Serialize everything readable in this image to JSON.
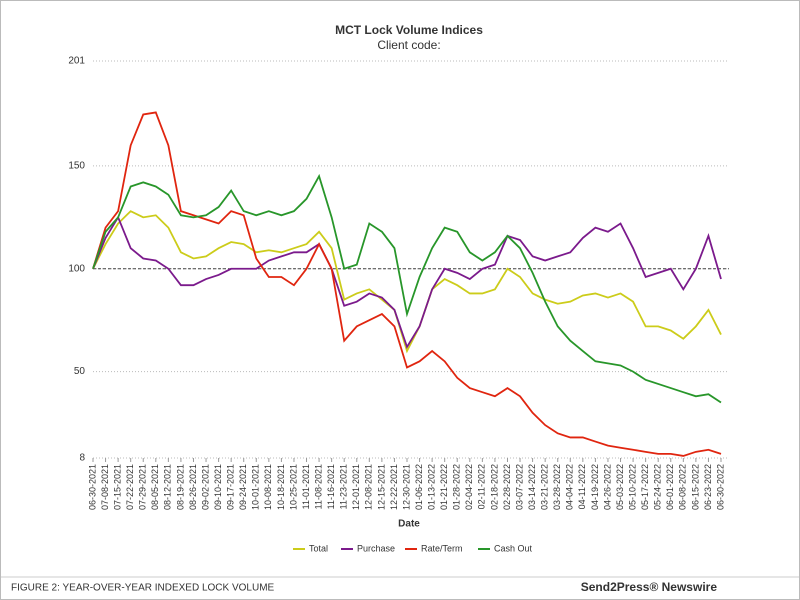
{
  "chart_data": {
    "type": "line",
    "title": "MCT Lock Volume Indices",
    "subtitle": "Client code:",
    "x_label": "Date",
    "categories": [
      "06-30-2021",
      "07-08-2021",
      "07-15-2021",
      "07-22-2021",
      "07-29-2021",
      "08-05-2021",
      "08-12-2021",
      "08-19-2021",
      "08-26-2021",
      "09-02-2021",
      "09-10-2021",
      "09-17-2021",
      "09-24-2021",
      "10-01-2021",
      "10-08-2021",
      "10-18-2021",
      "10-25-2021",
      "11-01-2021",
      "11-08-2021",
      "11-16-2021",
      "11-23-2021",
      "12-01-2021",
      "12-08-2021",
      "12-15-2021",
      "12-22-2021",
      "12-30-2021",
      "01-06-2022",
      "01-13-2022",
      "01-21-2022",
      "01-28-2022",
      "02-04-2022",
      "02-11-2022",
      "02-18-2022",
      "02-28-2022",
      "03-07-2022",
      "03-14-2022",
      "03-21-2022",
      "03-28-2022",
      "04-04-2022",
      "04-11-2022",
      "04-19-2022",
      "04-26-2022",
      "05-03-2022",
      "05-10-2022",
      "05-17-2022",
      "05-24-2022",
      "06-01-2022",
      "06-08-2022",
      "06-15-2022",
      "06-23-2022",
      "06-30-2022"
    ],
    "series": [
      {
        "name": "Total",
        "color": "#cccc1a",
        "values": [
          100,
          112,
          122,
          128,
          125,
          126,
          120,
          108,
          105,
          106,
          110,
          113,
          112,
          108,
          109,
          108,
          110,
          112,
          118,
          110,
          85,
          88,
          90,
          85,
          80,
          60,
          72,
          90,
          95,
          92,
          88,
          88,
          90,
          100,
          96,
          88,
          85,
          83,
          84,
          87,
          88,
          86,
          88,
          84,
          72,
          72,
          70,
          66,
          72,
          80,
          68
        ]
      },
      {
        "name": "Purchase",
        "color": "#7b1a8c",
        "values": [
          100,
          115,
          125,
          110,
          105,
          104,
          100,
          92,
          92,
          95,
          97,
          100,
          100,
          100,
          104,
          106,
          108,
          108,
          112,
          100,
          82,
          84,
          88,
          86,
          80,
          62,
          72,
          90,
          100,
          98,
          95,
          100,
          102,
          116,
          114,
          106,
          104,
          106,
          108,
          115,
          120,
          118,
          122,
          110,
          96,
          98,
          100,
          90,
          100,
          116,
          95
        ]
      },
      {
        "name": "Rate/Term",
        "color": "#e0250f",
        "values": [
          100,
          120,
          128,
          160,
          175,
          176,
          160,
          128,
          126,
          124,
          122,
          128,
          126,
          105,
          96,
          96,
          92,
          100,
          112,
          100,
          65,
          72,
          75,
          78,
          72,
          52,
          55,
          60,
          55,
          47,
          42,
          40,
          38,
          42,
          38,
          30,
          24,
          20,
          18,
          18,
          16,
          14,
          13,
          12,
          11,
          10,
          10,
          9,
          11,
          12,
          10
        ]
      },
      {
        "name": "Cash Out",
        "color": "#28962a",
        "values": [
          100,
          118,
          125,
          140,
          142,
          140,
          136,
          126,
          125,
          126,
          130,
          138,
          128,
          126,
          128,
          126,
          128,
          134,
          145,
          125,
          100,
          102,
          122,
          118,
          110,
          78,
          96,
          110,
          120,
          118,
          108,
          104,
          108,
          116,
          110,
          98,
          84,
          72,
          65,
          60,
          55,
          54,
          53,
          50,
          46,
          44,
          42,
          40,
          38,
          39,
          35
        ]
      }
    ],
    "ylim": [
      8,
      201
    ],
    "yticks": [
      8,
      50,
      100,
      150,
      201
    ],
    "grid": true,
    "baseline": 100,
    "legend": "bottom",
    "footer_caption": "FIGURE 2: YEAR-OVER-YEAR INDEXED LOCK VOLUME",
    "footer_brand": "Send2Press® Newswire"
  }
}
